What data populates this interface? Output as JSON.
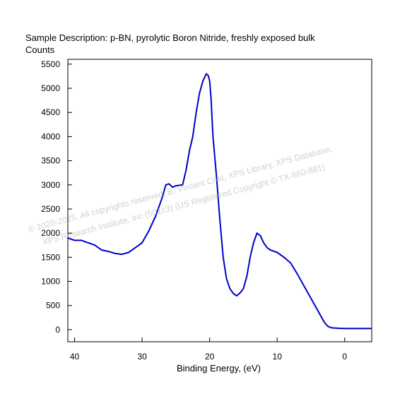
{
  "chart_data": {
    "type": "line",
    "title": "Sample Description:  p-BN, pyrolytic Boron Nitride, freshly exposed bulk",
    "ylabel": "Counts",
    "xlabel": "Binding Energy, (eV)",
    "xlim": [
      41,
      -4
    ],
    "ylim": [
      -250,
      5600
    ],
    "x_ticks": [
      40,
      30,
      20,
      10,
      0
    ],
    "y_ticks": [
      0,
      500,
      1000,
      1500,
      2000,
      2500,
      3000,
      3500,
      4000,
      4500,
      5000,
      5500
    ],
    "line_color": "#0000cc",
    "series": [
      {
        "x": [
          41,
          40,
          39,
          38,
          37,
          36,
          35,
          34,
          33,
          32,
          31,
          30,
          29,
          28,
          27,
          26.5,
          26,
          25.5,
          25,
          24,
          23.5,
          23,
          22.5,
          22,
          21.5,
          21,
          20.5,
          20.2,
          20,
          19.8,
          19.5,
          19,
          18.5,
          18,
          17.5,
          17,
          16.5,
          16,
          15.5,
          15,
          14.5,
          14,
          13.5,
          13,
          12.5,
          12,
          11.5,
          11,
          10,
          9,
          8,
          7,
          6,
          5,
          4,
          3,
          2.5,
          2,
          1,
          0,
          -1,
          -2,
          -3,
          -4
        ],
        "y": [
          1900,
          1850,
          1850,
          1800,
          1750,
          1650,
          1620,
          1580,
          1560,
          1600,
          1700,
          1800,
          2050,
          2350,
          2750,
          3000,
          3020,
          2950,
          2980,
          3000,
          3300,
          3700,
          4000,
          4500,
          4900,
          5150,
          5300,
          5260,
          5150,
          4800,
          4000,
          3200,
          2300,
          1500,
          1050,
          850,
          750,
          700,
          760,
          850,
          1100,
          1500,
          1800,
          2000,
          1950,
          1800,
          1700,
          1650,
          1600,
          1500,
          1380,
          1150,
          900,
          650,
          400,
          150,
          70,
          40,
          30,
          25,
          25,
          25,
          25,
          25
        ]
      }
    ]
  },
  "watermark": {
    "line1": "©  2020-2025,  All copyrights reserved,   B. Vincent Crist,  XPS Library, XPS Database,",
    "line2": "XPS Research Institute, Inc (501c3)   (US Registered Copyright © TX-560-881)"
  }
}
